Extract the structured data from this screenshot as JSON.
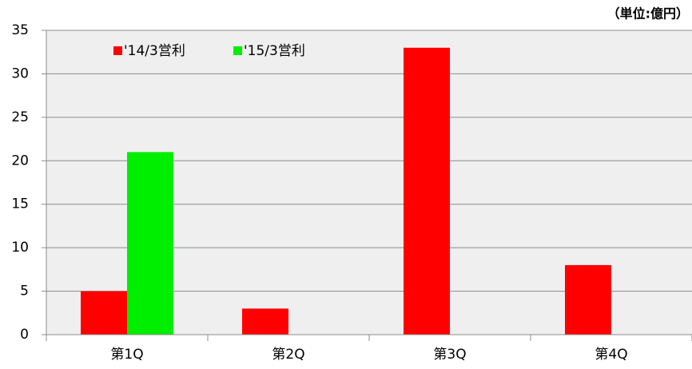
{
  "chart_data": {
    "type": "bar",
    "annotation": "（単位:億円）",
    "categories": [
      "第1Q",
      "第2Q",
      "第3Q",
      "第4Q"
    ],
    "series": [
      {
        "name": "'14/3営利",
        "color": "#ff0000",
        "values": [
          5,
          3,
          33,
          8
        ]
      },
      {
        "name": "'15/3営利",
        "color": "#00ee00",
        "values": [
          21,
          null,
          null,
          null
        ]
      }
    ],
    "ylim": [
      0,
      35
    ],
    "yticks": [
      0,
      5,
      10,
      15,
      20,
      25,
      30,
      35
    ],
    "grid": true,
    "legend": "top-left",
    "plot_background": "#efefef"
  }
}
